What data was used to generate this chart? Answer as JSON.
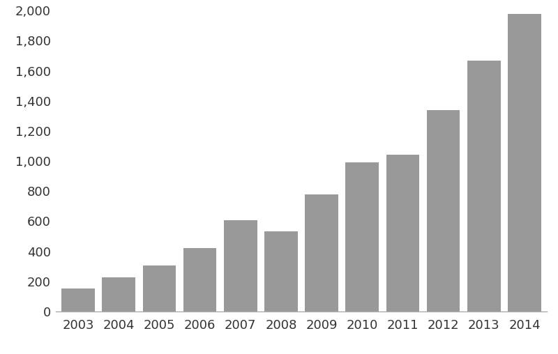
{
  "years": [
    2003,
    2004,
    2005,
    2006,
    2007,
    2008,
    2009,
    2010,
    2011,
    2012,
    2013,
    2014
  ],
  "values": [
    152,
    228,
    304,
    421,
    606,
    531,
    778,
    993,
    1044,
    1337,
    1668,
    1976
  ],
  "bar_color": "#999999",
  "background_color": "#ffffff",
  "ylim": [
    0,
    2000
  ],
  "yticks": [
    0,
    200,
    400,
    600,
    800,
    1000,
    1200,
    1400,
    1600,
    1800,
    2000
  ],
  "bar_width": 0.82,
  "tick_fontsize": 13,
  "label_color": "#333333",
  "spine_color": "#aaaaaa",
  "figsize": [
    8.0,
    5.08
  ],
  "dpi": 100
}
